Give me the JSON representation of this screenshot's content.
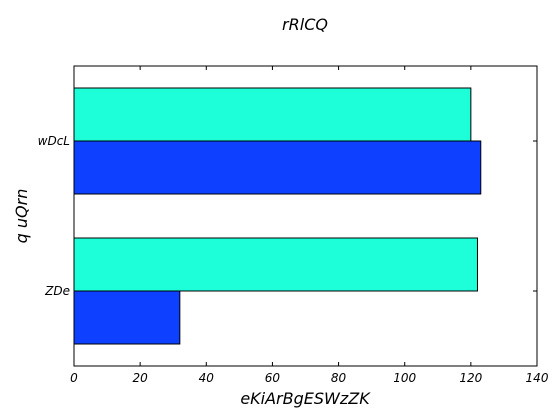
{
  "chart_data": {
    "type": "bar",
    "orientation": "horizontal",
    "title": "rRlCQ",
    "xlabel": "eKiArBgESWzZK",
    "ylabel": "q uQrn",
    "categories": [
      "ZDe",
      "wDcL"
    ],
    "series": [
      {
        "values": [
          32,
          123
        ],
        "color": "#0d41ff"
      },
      {
        "values": [
          122,
          120
        ],
        "color": "#1dffd8"
      }
    ],
    "xlim": [
      0,
      140
    ],
    "xticks": [
      0,
      20,
      40,
      60,
      80,
      100,
      120,
      140
    ],
    "grid": false
  }
}
